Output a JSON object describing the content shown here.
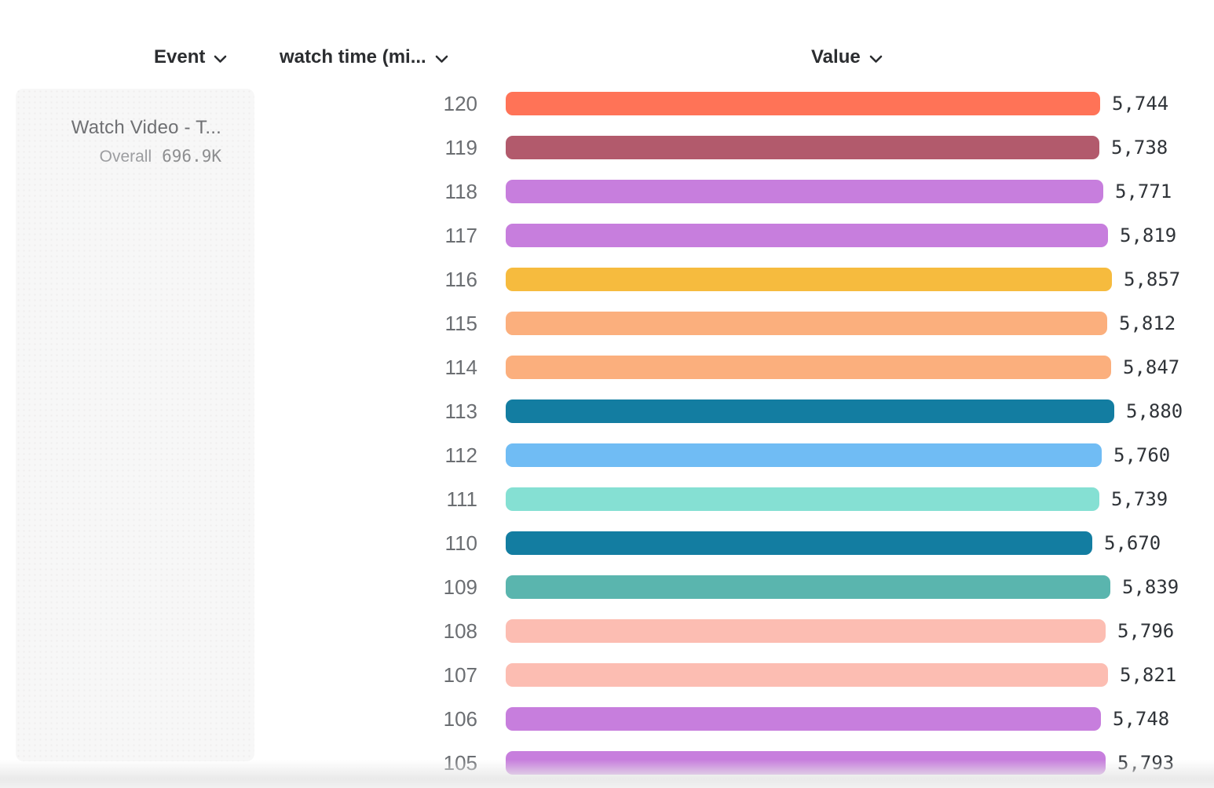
{
  "header": {
    "event_column": {
      "label": "Event"
    },
    "breakdown_column": {
      "label": "watch time (mi..."
    },
    "value_column": {
      "label": "Value"
    }
  },
  "sidebar": {
    "event_name": "Watch Video - T...",
    "overall_label": "Overall",
    "overall_value": "696.9K"
  },
  "chart_data": {
    "type": "bar",
    "orientation": "horizontal",
    "title": "",
    "xlabel": "Value",
    "ylabel": "watch time (mi...)",
    "categories": [
      120,
      119,
      118,
      117,
      116,
      115,
      114,
      113,
      112,
      111,
      110,
      109,
      108,
      107,
      106,
      105
    ],
    "values": [
      5744,
      5738,
      5771,
      5819,
      5857,
      5812,
      5847,
      5880,
      5760,
      5739,
      5670,
      5839,
      5796,
      5821,
      5748,
      5793
    ],
    "colors": [
      "#FF7357",
      "#B25A6C",
      "#C77EDD",
      "#C77EDD",
      "#F6BB3E",
      "#FBAF7D",
      "#FBAF7D",
      "#137DA1",
      "#70BCF4",
      "#85E0D3",
      "#137DA1",
      "#5AB5AE",
      "#FCBDB2",
      "#FCBDB2",
      "#C77EDD",
      "#C77EDD"
    ],
    "xlim": [
      0,
      5880
    ],
    "grid": false,
    "value_labels_shown": true,
    "label_text_color": "#6b6e72",
    "value_text_color": "#2f3338"
  }
}
